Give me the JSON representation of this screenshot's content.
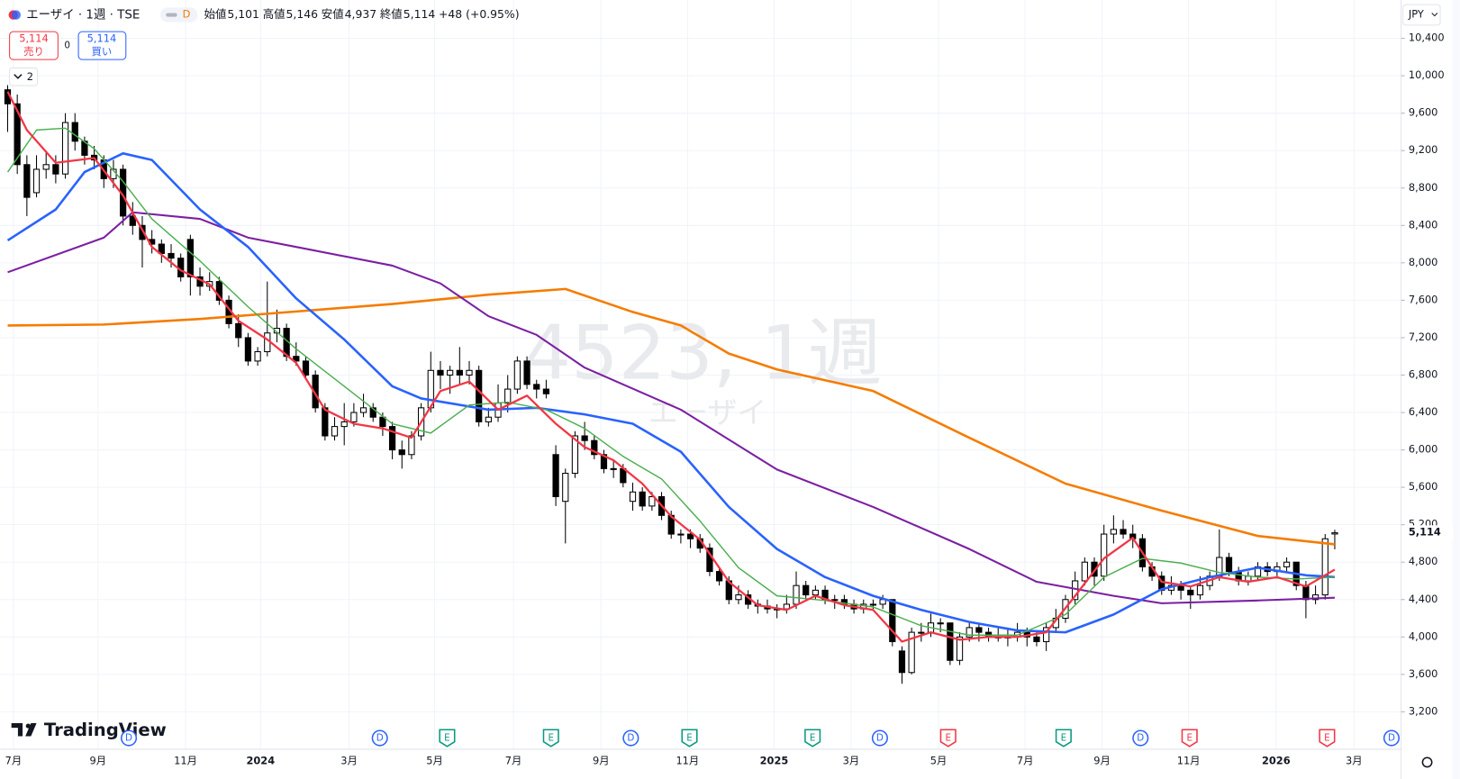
{
  "header": {
    "symbol": "エーザイ · 1週 · TSE",
    "badge": "D",
    "open_label": "始値",
    "open": "5,101",
    "high_label": "高値",
    "high": "5,146",
    "low_label": "安値",
    "low": "4,937",
    "close_label": "終値",
    "close": "5,114",
    "change": "+48 (+0.95%)",
    "sell_price": "5,114",
    "sell": "売り",
    "spread": "0",
    "buy_price": "5,114",
    "buy": "買い",
    "indicators_count": "2",
    "currency": "JPY",
    "watermark": "4523, 1週",
    "watermark_name": "エーザイ",
    "logo": "TradingView"
  },
  "chart_data": {
    "type": "candlestick",
    "open": [
      9850,
      9700,
      9050,
      8750,
      9000,
      9050,
      8950,
      9500,
      9300,
      9150,
      9100,
      8900,
      9000,
      8500,
      8400,
      8250,
      8200,
      8100,
      8050,
      8250,
      7850,
      7750,
      7800,
      7600,
      7350,
      7200,
      6950,
      7050,
      7250,
      7300,
      7000,
      6950,
      6800,
      6450,
      6150,
      6250,
      6300,
      6400,
      6450,
      6350,
      6250,
      6000,
      5950,
      6150,
      6450,
      6850,
      6800,
      6850,
      6800,
      6850,
      6300,
      6350,
      6500,
      6650,
      6950,
      6700,
      6650,
      5950,
      5450,
      5750,
      6150,
      6100,
      5950,
      5800,
      5800,
      5450,
      5550,
      5400,
      5500,
      5300,
      5100,
      5100,
      5050,
      4950,
      4700,
      4600,
      4400,
      4450,
      4350,
      4330,
      4300,
      4300,
      4350,
      4550,
      4450,
      4500,
      4400,
      4400,
      4350,
      4300,
      4350,
      4350,
      4400,
      3850,
      3620,
      4050,
      4050,
      4150,
      4150,
      3750,
      4000,
      4100,
      4050,
      4000,
      4000,
      4000,
      4050,
      4000,
      3950,
      4100,
      4200,
      4400,
      4600,
      4800,
      4650,
      5100,
      5150,
      5100,
      5050,
      4750,
      4650,
      4500,
      4550,
      4500,
      4450,
      4550,
      4650,
      4850,
      4700,
      4600,
      4650,
      4750,
      4700,
      4750,
      4800,
      4550,
      4400,
      4450,
      5101
    ],
    "high": [
      9900,
      9800,
      9150,
      9150,
      9200,
      9150,
      9600,
      9600,
      9350,
      9250,
      9150,
      9100,
      9050,
      8650,
      8500,
      8350,
      8250,
      8200,
      8100,
      8300,
      7950,
      7900,
      7850,
      7650,
      7450,
      7250,
      7100,
      7800,
      7500,
      7350,
      7150,
      7000,
      6850,
      6500,
      6350,
      6500,
      6500,
      6600,
      6500,
      6400,
      6300,
      6100,
      6200,
      6500,
      7050,
      6950,
      6900,
      7100,
      6950,
      6900,
      6450,
      6700,
      6800,
      7000,
      7000,
      6750,
      6750,
      6050,
      5800,
      6200,
      6300,
      6150,
      6000,
      5900,
      5850,
      5650,
      5600,
      5550,
      5550,
      5350,
      5150,
      5150,
      5100,
      5000,
      4750,
      4650,
      4550,
      4500,
      4400,
      4400,
      4350,
      4450,
      4700,
      4600,
      4550,
      4550,
      4450,
      4450,
      4400,
      4400,
      4400,
      4450,
      4400,
      3900,
      4100,
      4150,
      4250,
      4200,
      4150,
      4050,
      4150,
      4150,
      4100,
      4100,
      4100,
      4150,
      4100,
      4050,
      4150,
      4300,
      4450,
      4700,
      4850,
      4850,
      5200,
      5300,
      5250,
      5200,
      5100,
      4800,
      4700,
      4650,
      4600,
      4550,
      4650,
      4700,
      5150,
      4900,
      4750,
      4700,
      4800,
      4800,
      4800,
      4850,
      4800,
      4600,
      4550,
      5100,
      5146
    ],
    "low": [
      9400,
      8950,
      8500,
      8700,
      8900,
      8850,
      8900,
      9200,
      9050,
      9000,
      8800,
      8800,
      8400,
      8300,
      7950,
      8100,
      8000,
      7950,
      7800,
      7650,
      7650,
      7700,
      7550,
      7300,
      7100,
      6900,
      6900,
      7000,
      7150,
      6950,
      6900,
      6750,
      6400,
      6100,
      6100,
      6050,
      6250,
      6350,
      6300,
      6150,
      5900,
      5800,
      5900,
      6100,
      6400,
      6650,
      6600,
      6700,
      6700,
      6250,
      6250,
      6300,
      6400,
      6600,
      6650,
      6550,
      6550,
      5400,
      5000,
      5700,
      6000,
      5900,
      5750,
      5700,
      5600,
      5350,
      5350,
      5350,
      5250,
      5050,
      5000,
      4950,
      4900,
      4650,
      4550,
      4350,
      4350,
      4300,
      4250,
      4250,
      4200,
      4250,
      4300,
      4400,
      4400,
      4350,
      4300,
      4300,
      4250,
      4250,
      4300,
      4300,
      3900,
      3500,
      3600,
      3950,
      4000,
      4050,
      3700,
      3700,
      3950,
      3950,
      3950,
      3950,
      3900,
      3950,
      3900,
      3900,
      3850,
      4050,
      4150,
      4350,
      4550,
      4550,
      4600,
      5000,
      5050,
      4950,
      4700,
      4600,
      4450,
      4450,
      4400,
      4300,
      4400,
      4500,
      4600,
      4650,
      4550,
      4550,
      4600,
      4650,
      4650,
      4700,
      4500,
      4200,
      4350,
      4400,
      4937
    ],
    "close": [
      9700,
      9050,
      8700,
      9000,
      9050,
      8950,
      9500,
      9300,
      9150,
      9100,
      8900,
      9000,
      8500,
      8400,
      8250,
      8200,
      8100,
      8050,
      7850,
      7850,
      7750,
      7800,
      7600,
      7350,
      7200,
      6950,
      7050,
      7250,
      7300,
      7000,
      6950,
      6800,
      6450,
      6150,
      6250,
      6300,
      6400,
      6450,
      6350,
      6250,
      6000,
      5950,
      6150,
      6450,
      6850,
      6800,
      6850,
      6800,
      6850,
      6300,
      6350,
      6500,
      6650,
      6950,
      6700,
      6650,
      6600,
      5500,
      5750,
      6150,
      6100,
      5950,
      5800,
      5800,
      5650,
      5550,
      5400,
      5500,
      5300,
      5100,
      5100,
      5050,
      4950,
      4700,
      4600,
      4400,
      4450,
      4350,
      4330,
      4300,
      4300,
      4350,
      4550,
      4450,
      4500,
      4400,
      4400,
      4350,
      4300,
      4350,
      4350,
      4400,
      3950,
      3620,
      4050,
      4050,
      4150,
      4150,
      3750,
      4000,
      4100,
      4050,
      4000,
      4000,
      4000,
      4050,
      4000,
      3950,
      4100,
      4200,
      4400,
      4600,
      4800,
      4650,
      5100,
      5150,
      5100,
      5050,
      4750,
      4650,
      4500,
      4550,
      4500,
      4450,
      4550,
      4650,
      4850,
      4700,
      4600,
      4650,
      4750,
      4700,
      4750,
      4800,
      4550,
      4400,
      4450,
      5050,
      5114
    ],
    "up_color": "#ffffff",
    "down_color": "#000000",
    "moving_averages": [
      {
        "color": "#f57c00",
        "width": 2.5,
        "x": [
          0,
          10,
          20,
          30,
          40,
          50,
          58,
          65,
          70,
          75,
          80,
          90,
          100,
          110,
          120,
          130,
          138
        ],
        "values": [
          7330,
          7340,
          7400,
          7480,
          7560,
          7660,
          7720,
          7475,
          7330,
          7030,
          6860,
          6630,
          6130,
          5640,
          5350,
          5080,
          4990
        ]
      },
      {
        "color": "#7b1fa2",
        "width": 2,
        "x": [
          0,
          10,
          13,
          20,
          25,
          30,
          40,
          45,
          50,
          55,
          60,
          70,
          80,
          90,
          100,
          107,
          115,
          120,
          130,
          138
        ],
        "values": [
          7900,
          8270,
          8540,
          8470,
          8270,
          8170,
          7970,
          7780,
          7430,
          7230,
          6880,
          6430,
          5790,
          5390,
          4940,
          4590,
          4440,
          4360,
          4390,
          4420
        ]
      },
      {
        "color": "#2962ff",
        "width": 2.5,
        "x": [
          0,
          5,
          8,
          12,
          15,
          20,
          25,
          30,
          35,
          40,
          43,
          50,
          55,
          60,
          65,
          70,
          75,
          80,
          85,
          90,
          95,
          100,
          105,
          110,
          115,
          120,
          125,
          130,
          135,
          138
        ],
        "values": [
          8240,
          8570,
          8970,
          9170,
          9100,
          8570,
          8170,
          7620,
          7180,
          6680,
          6550,
          6430,
          6450,
          6380,
          6280,
          5980,
          5390,
          4940,
          4640,
          4440,
          4290,
          4160,
          4070,
          4050,
          4240,
          4510,
          4640,
          4740,
          4660,
          4640
        ]
      },
      {
        "color": "#4caf50",
        "width": 1.4,
        "x": [
          0,
          3,
          6,
          9,
          12,
          15,
          20,
          25,
          30,
          35,
          40,
          44,
          48,
          52,
          56,
          60,
          64,
          68,
          72,
          76,
          80,
          85,
          90,
          95,
          100,
          105,
          110,
          114,
          118,
          122,
          126,
          130,
          134,
          138
        ],
        "values": [
          8970,
          9420,
          9440,
          9220,
          8870,
          8470,
          8020,
          7530,
          7080,
          6680,
          6280,
          6180,
          6480,
          6510,
          6430,
          6230,
          5930,
          5690,
          5240,
          4740,
          4440,
          4390,
          4320,
          4120,
          4020,
          4020,
          4240,
          4640,
          4840,
          4790,
          4690,
          4640,
          4620,
          4640
        ]
      },
      {
        "color": "#f23645",
        "width": 2.2,
        "x": [
          0,
          2,
          5,
          9,
          12,
          15,
          18,
          21,
          24,
          27,
          30,
          33,
          36,
          39,
          42,
          45,
          48,
          51,
          54,
          57,
          60,
          63,
          66,
          69,
          72,
          75,
          78,
          81,
          84,
          87,
          90,
          93,
          96,
          99,
          102,
          105,
          108,
          111,
          114,
          117,
          120,
          123,
          126,
          129,
          132,
          135,
          138
        ],
        "values": [
          9830,
          9420,
          9070,
          9120,
          8720,
          8170,
          7920,
          7770,
          7380,
          7180,
          6930,
          6430,
          6280,
          6230,
          6130,
          6630,
          6730,
          6430,
          6580,
          6280,
          6030,
          5890,
          5640,
          5290,
          5040,
          4590,
          4340,
          4290,
          4440,
          4340,
          4290,
          3950,
          4050,
          3970,
          4000,
          4000,
          4050,
          4440,
          4840,
          5060,
          4590,
          4540,
          4640,
          4590,
          4640,
          4540,
          4720
        ]
      }
    ],
    "events": [
      {
        "label": "D",
        "x": 12.6,
        "color": "#2962ff"
      },
      {
        "label": "D",
        "x": 38.7,
        "color": "#2962ff"
      },
      {
        "label": "E",
        "x": 45.7,
        "color": "#089981"
      },
      {
        "label": "E",
        "x": 56.5,
        "color": "#089981"
      },
      {
        "label": "D",
        "x": 64.8,
        "color": "#2962ff"
      },
      {
        "label": "E",
        "x": 70.9,
        "color": "#089981"
      },
      {
        "label": "E",
        "x": 83.7,
        "color": "#089981"
      },
      {
        "label": "D",
        "x": 90.7,
        "color": "#2962ff"
      },
      {
        "label": "E",
        "x": 97.8,
        "color": "#f23645"
      },
      {
        "label": "E",
        "x": 109.8,
        "color": "#089981"
      },
      {
        "label": "D",
        "x": 117.8,
        "color": "#2962ff"
      },
      {
        "label": "E",
        "x": 122.9,
        "color": "#f23645"
      },
      {
        "label": "E",
        "x": 137.2,
        "color": "#f23645"
      },
      {
        "label": "D",
        "x": 143.9,
        "color": "#2962ff"
      }
    ],
    "last_price_label": "5,114",
    "xlim": [
      -0.77,
      144.9
    ],
    "ylim": [
      2800,
      10810
    ],
    "xticks": [
      {
        "value": 0.6,
        "label": "7月"
      },
      {
        "value": 9.4,
        "label": "9月"
      },
      {
        "value": 18.5,
        "label": "11月"
      },
      {
        "value": 26.3,
        "label": "2024"
      },
      {
        "value": 35.5,
        "label": "3月"
      },
      {
        "value": 44.4,
        "label": "5月"
      },
      {
        "value": 52.6,
        "label": "7月"
      },
      {
        "value": 61.7,
        "label": "9月"
      },
      {
        "value": 70.7,
        "label": "11月"
      },
      {
        "value": 79.7,
        "label": "2025"
      },
      {
        "value": 87.7,
        "label": "3月"
      },
      {
        "value": 96.8,
        "label": "5月"
      },
      {
        "value": 105.8,
        "label": "7月"
      },
      {
        "value": 113.8,
        "label": "9月"
      },
      {
        "value": 122.8,
        "label": "11月"
      },
      {
        "value": 131.9,
        "label": "2026"
      },
      {
        "value": 140.0,
        "label": "3月"
      }
    ],
    "yticks": [
      {
        "value": 3200,
        "label": "3,200"
      },
      {
        "value": 3600,
        "label": "3,600"
      },
      {
        "value": 4000,
        "label": "4,000"
      },
      {
        "value": 4400,
        "label": "4,400"
      },
      {
        "value": 4800,
        "label": "4,800"
      },
      {
        "value": 5200,
        "label": "5,200"
      },
      {
        "value": 5600,
        "label": "5,600"
      },
      {
        "value": 6000,
        "label": "6,000"
      },
      {
        "value": 6400,
        "label": "6,400"
      },
      {
        "value": 6800,
        "label": "6,800"
      },
      {
        "value": 7200,
        "label": "7,200"
      },
      {
        "value": 7600,
        "label": "7,600"
      },
      {
        "value": 8000,
        "label": "8,000"
      },
      {
        "value": 8400,
        "label": "8,400"
      },
      {
        "value": 8800,
        "label": "8,800"
      },
      {
        "value": 9200,
        "label": "9,200"
      },
      {
        "value": 9600,
        "label": "9,600"
      },
      {
        "value": 10000,
        "label": "10,000"
      },
      {
        "value": 10400,
        "label": "10,400"
      }
    ],
    "grid": true
  }
}
